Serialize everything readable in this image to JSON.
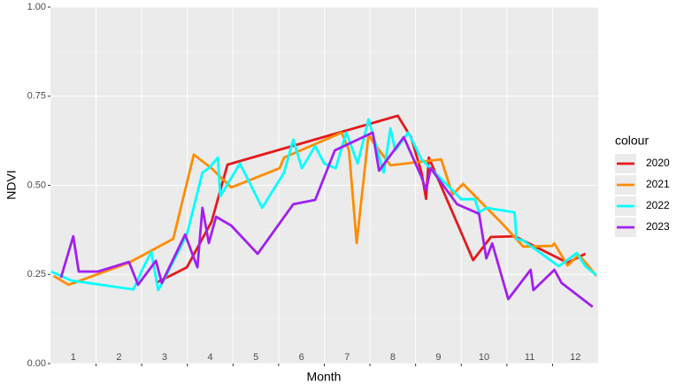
{
  "chart_data": {
    "type": "line",
    "x_label": "Month",
    "y_label": "NDVI",
    "legend_title": "colour",
    "legend": "right",
    "xlim": [
      0.5,
      12.5
    ],
    "xticks": [
      1,
      2,
      3,
      4,
      5,
      6,
      7,
      8,
      9,
      10,
      11,
      12
    ],
    "xminor": [
      1.5,
      2.5,
      3.5,
      4.5,
      5.5,
      6.5,
      7.5,
      8.5,
      9.5,
      10.5,
      11.5
    ],
    "ylim": [
      0,
      1
    ],
    "yticks": [
      {
        "value": 0,
        "label": "0.00"
      },
      {
        "value": 0.25,
        "label": "0.25"
      },
      {
        "value": 0.5,
        "label": "0.50"
      },
      {
        "value": 0.75,
        "label": "0.75"
      },
      {
        "value": 1,
        "label": "1.00"
      }
    ],
    "yminor": [
      0.125,
      0.375,
      0.625,
      0.875
    ],
    "grid": true,
    "series": [
      {
        "name": "2020",
        "color": "#e41a1c",
        "x": [
          2.81,
          3.49,
          4.03,
          4.38,
          8.11,
          8.4,
          8.63,
          8.73,
          8.79,
          9.76,
          10.15,
          10.67,
          11.83,
          12.22
        ],
        "values": [
          0.226,
          0.27,
          0.398,
          0.558,
          0.695,
          0.635,
          0.536,
          0.462,
          0.578,
          0.29,
          0.355,
          0.357,
          0.283,
          0.308
        ]
      },
      {
        "name": "2021",
        "color": "#ff8c00",
        "x": [
          0.57,
          0.9,
          2.22,
          3.19,
          3.64,
          4.03,
          4.46,
          5.52,
          5.62,
          6.88,
          7.04,
          7.21,
          7.47,
          7.56,
          7.95,
          9.06,
          9.31,
          9.54,
          10.38,
          10.86,
          11.49,
          11.54,
          11.83,
          12.07,
          12.28,
          12.46
        ],
        "values": [
          0.246,
          0.221,
          0.283,
          0.35,
          0.586,
          0.548,
          0.494,
          0.548,
          0.578,
          0.648,
          0.598,
          0.338,
          0.643,
          0.623,
          0.556,
          0.573,
          0.474,
          0.504,
          0.395,
          0.328,
          0.33,
          0.337,
          0.275,
          0.305,
          0.275,
          0.246
        ]
      },
      {
        "name": "2022",
        "color": "#00ffff",
        "x": [
          0.515,
          0.96,
          2.32,
          2.51,
          2.71,
          2.86,
          3.0,
          3.49,
          3.83,
          3.97,
          4.17,
          4.22,
          4.65,
          5.14,
          5.62,
          5.82,
          6.01,
          6.3,
          6.5,
          6.75,
          6.98,
          7.23,
          7.47,
          7.8,
          7.95,
          8.05,
          8.34,
          8.63,
          8.92,
          9.5,
          9.8,
          9.89,
          10.05,
          10.67,
          10.71,
          10.86,
          11.64,
          12.03,
          12.22,
          12.46
        ],
        "values": [
          0.258,
          0.233,
          0.208,
          0.263,
          0.313,
          0.206,
          0.238,
          0.362,
          0.536,
          0.548,
          0.578,
          0.469,
          0.561,
          0.437,
          0.536,
          0.628,
          0.548,
          0.61,
          0.561,
          0.548,
          0.648,
          0.561,
          0.685,
          0.536,
          0.66,
          0.598,
          0.648,
          0.573,
          0.536,
          0.461,
          0.461,
          0.424,
          0.437,
          0.424,
          0.35,
          0.345,
          0.273,
          0.31,
          0.273,
          0.248
        ]
      },
      {
        "name": "2023",
        "color": "#a020f0",
        "x": [
          0.73,
          1.0,
          1.12,
          1.54,
          2.22,
          2.42,
          2.81,
          2.94,
          3.45,
          3.72,
          3.83,
          3.97,
          4.13,
          4.46,
          5.04,
          5.82,
          6.3,
          6.73,
          7.56,
          7.7,
          8.24,
          8.63,
          8.73,
          8.83,
          9.41,
          9.89,
          10.05,
          10.18,
          10.53,
          11.02,
          11.08,
          11.54,
          11.7,
          12.38
        ],
        "values": [
          0.241,
          0.357,
          0.258,
          0.258,
          0.285,
          0.221,
          0.288,
          0.226,
          0.362,
          0.27,
          0.437,
          0.338,
          0.412,
          0.387,
          0.308,
          0.447,
          0.459,
          0.598,
          0.648,
          0.541,
          0.635,
          0.523,
          0.486,
          0.548,
          0.447,
          0.42,
          0.295,
          0.337,
          0.181,
          0.263,
          0.206,
          0.263,
          0.226,
          0.159
        ]
      }
    ]
  }
}
